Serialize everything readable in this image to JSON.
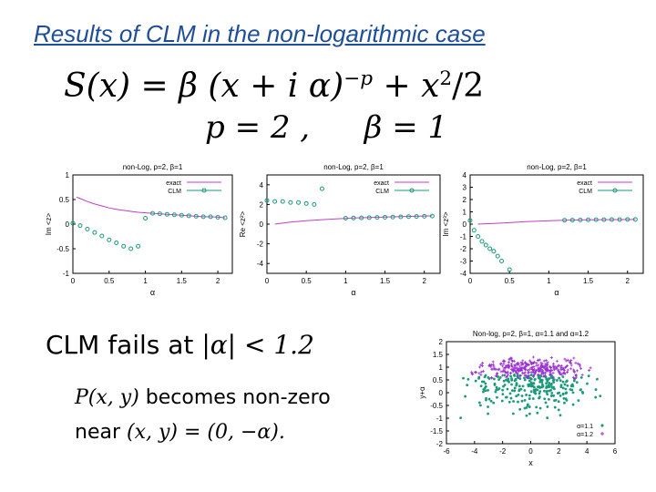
{
  "slide": {
    "title": "Results of CLM in the non-logarithmic case",
    "equation1": {
      "lhs": "S(x)",
      "eq": "=",
      "beta": "β",
      "open": "(x + i α)",
      "exp": "−p",
      "plus": "+ x",
      "sq": "2",
      "tail": "/2"
    },
    "equation2": {
      "p": "p = 2 ,",
      "b": "β = 1"
    },
    "statement1": {
      "text": "CLM fails at ",
      "math": "|α| < 1.2"
    },
    "statement2": {
      "math1": "P(x, y)",
      "text1": " becomes non-zero",
      "text2": "near ",
      "math2": "(x, y) = (0, −α)."
    }
  },
  "chart_data": [
    {
      "type": "line",
      "title": "non-Log, p=2, β=1",
      "xlabel": "α",
      "ylabel": "Im <z>",
      "xlim": [
        0,
        2.2
      ],
      "ylim": [
        -1,
        1
      ],
      "xticks": [
        0,
        0.5,
        1,
        1.5,
        2
      ],
      "xticklabels": [
        "0",
        "0.5",
        "1",
        "1.5",
        "2"
      ],
      "yticks": [
        -1,
        -0.5,
        0,
        0.5,
        1
      ],
      "yticklabels": [
        "-1",
        "-0.5",
        "0",
        "0.5",
        "1"
      ],
      "legend": {
        "position": "top-right",
        "entries": [
          "exact",
          "CLM"
        ]
      },
      "series": [
        {
          "name": "exact",
          "style": "line",
          "color": "#c040c0",
          "x": [
            0.05,
            0.1,
            0.2,
            0.3,
            0.4,
            0.5,
            0.6,
            0.7,
            0.8,
            0.9,
            1.0,
            1.1,
            1.2,
            1.3,
            1.4,
            1.5,
            1.6,
            1.7,
            1.8,
            1.9,
            2.0,
            2.1
          ],
          "y": [
            0.55,
            0.52,
            0.46,
            0.41,
            0.37,
            0.33,
            0.3,
            0.28,
            0.26,
            0.24,
            0.23,
            0.22,
            0.21,
            0.2,
            0.19,
            0.18,
            0.17,
            0.16,
            0.15,
            0.15,
            0.14,
            0.13
          ]
        },
        {
          "name": "CLM",
          "style": "points",
          "color": "#1a9a7a",
          "x": [
            0.0,
            0.1,
            0.2,
            0.3,
            0.4,
            0.5,
            0.6,
            0.7,
            0.8,
            0.9,
            1.0,
            1.1,
            1.2,
            1.3,
            1.4,
            1.5,
            1.6,
            1.7,
            1.8,
            1.9,
            2.0,
            2.1
          ],
          "y": [
            0.02,
            -0.03,
            -0.1,
            -0.17,
            -0.24,
            -0.32,
            -0.38,
            -0.45,
            -0.5,
            -0.45,
            0.12,
            0.22,
            0.21,
            0.2,
            0.19,
            0.18,
            0.17,
            0.16,
            0.15,
            0.15,
            0.14,
            0.13
          ]
        }
      ]
    },
    {
      "type": "line",
      "title": "non-Log, p=2, β=1",
      "xlabel": "α",
      "ylabel": "Re <z²>",
      "xlim": [
        0,
        2.2
      ],
      "ylim": [
        -5,
        5
      ],
      "xticks": [
        0,
        0.5,
        1,
        1.5,
        2
      ],
      "xticklabels": [
        "0",
        "0.5",
        "1",
        "1.5",
        "2"
      ],
      "yticks": [
        -4,
        -2,
        0,
        2,
        4
      ],
      "yticklabels": [
        "-4",
        "-2",
        "0",
        "2",
        "4"
      ],
      "legend": {
        "position": "top-right",
        "entries": [
          "exact",
          "CLM"
        ]
      },
      "series": [
        {
          "name": "exact",
          "style": "line",
          "color": "#c040c0",
          "x": [
            0.1,
            0.3,
            0.5,
            0.7,
            0.9,
            1.1,
            1.3,
            1.5,
            1.7,
            1.9,
            2.1
          ],
          "y": [
            0.0,
            0.2,
            0.35,
            0.45,
            0.55,
            0.62,
            0.68,
            0.72,
            0.76,
            0.8,
            0.84
          ]
        },
        {
          "name": "CLM",
          "style": "points",
          "color": "#1a9a7a",
          "x": [
            0.0,
            0.1,
            0.2,
            0.3,
            0.4,
            0.5,
            0.6,
            0.7,
            1.0,
            1.1,
            1.2,
            1.3,
            1.4,
            1.5,
            1.6,
            1.7,
            1.8,
            1.9,
            2.0,
            2.1
          ],
          "y": [
            2.4,
            2.3,
            2.3,
            2.2,
            2.2,
            2.1,
            2.0,
            3.6,
            0.6,
            0.62,
            0.64,
            0.66,
            0.68,
            0.7,
            0.72,
            0.74,
            0.76,
            0.78,
            0.8,
            0.82
          ]
        }
      ]
    },
    {
      "type": "line",
      "title": "non-Log, p=2, β=1",
      "xlabel": "α",
      "ylabel": "Im <z³>",
      "xlim": [
        0,
        2.2
      ],
      "ylim": [
        -4,
        4
      ],
      "xticks": [
        0,
        0.5,
        1,
        1.5,
        2
      ],
      "xticklabels": [
        "0",
        "0.5",
        "1",
        "1.5",
        "2"
      ],
      "yticks": [
        -4,
        -3,
        -2,
        -1,
        0,
        1,
        2,
        3,
        4
      ],
      "yticklabels": [
        "-4",
        "-3",
        "-2",
        "-1",
        "0",
        "1",
        "2",
        "3",
        "4"
      ],
      "legend": {
        "position": "top-right",
        "entries": [
          "exact",
          "CLM"
        ]
      },
      "series": [
        {
          "name": "exact",
          "style": "line",
          "color": "#c040c0",
          "x": [
            0.1,
            0.3,
            0.5,
            0.7,
            0.9,
            1.1,
            1.3,
            1.5,
            1.7,
            1.9,
            2.1
          ],
          "y": [
            0.0,
            0.05,
            0.12,
            0.2,
            0.25,
            0.3,
            0.33,
            0.35,
            0.36,
            0.37,
            0.38
          ]
        },
        {
          "name": "CLM",
          "style": "points",
          "color": "#1a9a7a",
          "x": [
            0.0,
            0.05,
            0.1,
            0.15,
            0.2,
            0.25,
            0.3,
            0.35,
            0.4,
            0.5,
            1.2,
            1.3,
            1.4,
            1.5,
            1.6,
            1.7,
            1.8,
            1.9,
            2.0,
            2.1
          ],
          "y": [
            0.3,
            -0.5,
            -1.0,
            -1.4,
            -1.7,
            -2.0,
            -2.2,
            -2.6,
            -3.0,
            -3.7,
            0.32,
            0.33,
            0.34,
            0.35,
            0.36,
            0.36,
            0.37,
            0.37,
            0.38,
            0.38
          ]
        }
      ]
    },
    {
      "type": "scatter",
      "title": "Non-log, p=2, β=1, α=1.1 and α=1.2",
      "xlabel": "x",
      "ylabel": "y+α",
      "xlim": [
        -6,
        6
      ],
      "ylim": [
        -2,
        2
      ],
      "xticks": [
        -6,
        -4,
        -2,
        0,
        2,
        4,
        6
      ],
      "xticklabels": [
        "-6",
        "-4",
        "-2",
        "0",
        "2",
        "4",
        "6"
      ],
      "yticks": [
        -2,
        -1.5,
        -1,
        -0.5,
        0,
        0.5,
        1,
        1.5,
        2
      ],
      "yticklabels": [
        "-2",
        "-1.5",
        "-1",
        "-0.5",
        "0",
        "0.5",
        "1",
        "1.5",
        "2"
      ],
      "legend": {
        "position": "bottom-right",
        "entries": [
          "α=1.1",
          "α=1.2"
        ]
      },
      "series": [
        {
          "name": "α=1.1",
          "style": "points",
          "color": "#1a9a7a"
        },
        {
          "name": "α=1.2",
          "style": "plus",
          "color": "#9a30d0"
        }
      ]
    }
  ]
}
